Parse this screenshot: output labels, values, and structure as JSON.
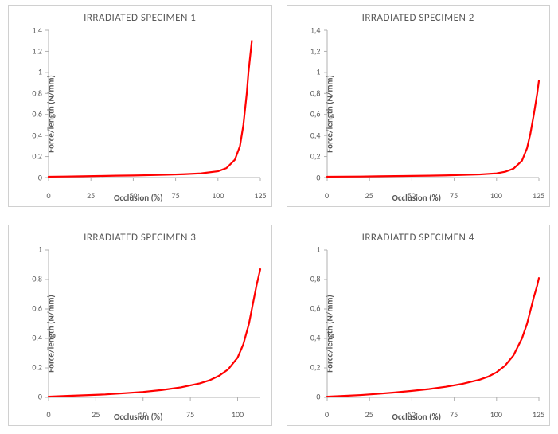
{
  "layout": {
    "rows": 2,
    "cols": 2
  },
  "common": {
    "xlabel": "Occlusion (%)",
    "ylabel": "Force/length (N/mm)",
    "title_fontsize": 13,
    "label_fontsize": 11,
    "tick_fontsize": 10,
    "title_color": "#595959",
    "label_color": "#595959",
    "tick_color": "#595959",
    "line_color": "#ff0000",
    "line_width": 2.2,
    "axis_color": "#b0b0b0",
    "tick_mark_color": "#b0b0b0",
    "panel_border_color": "#d0d0d0",
    "background_color": "#ffffff",
    "font_family": "Calibri"
  },
  "charts": [
    {
      "title": "IRRADIATED SPECIMEN 1",
      "type": "line",
      "xlim": [
        0,
        125
      ],
      "xtick_step": 25,
      "ylim": [
        0,
        1.4
      ],
      "ytick_step": 0.2,
      "y_decimal_sep": "mixed",
      "series": {
        "x": [
          0,
          10,
          20,
          30,
          40,
          50,
          60,
          70,
          80,
          90,
          100,
          105,
          110,
          113,
          115,
          117,
          118,
          119,
          120
        ],
        "y": [
          0.008,
          0.01,
          0.012,
          0.015,
          0.018,
          0.02,
          0.023,
          0.027,
          0.032,
          0.04,
          0.06,
          0.09,
          0.17,
          0.3,
          0.5,
          0.8,
          1.0,
          1.15,
          1.3
        ]
      }
    },
    {
      "title": "IRRADIATED SPECIMEN 2",
      "type": "line",
      "xlim": [
        0,
        125
      ],
      "xtick_step": 25,
      "ylim": [
        0,
        1.4
      ],
      "ytick_step": 0.2,
      "y_decimal_sep": "mixed",
      "series": {
        "x": [
          0,
          10,
          20,
          30,
          40,
          50,
          60,
          70,
          80,
          90,
          100,
          105,
          110,
          115,
          118,
          120,
          122,
          124,
          125
        ],
        "y": [
          0.008,
          0.009,
          0.01,
          0.012,
          0.014,
          0.016,
          0.018,
          0.021,
          0.025,
          0.03,
          0.04,
          0.055,
          0.085,
          0.16,
          0.28,
          0.42,
          0.6,
          0.8,
          0.92
        ]
      }
    },
    {
      "title": "IRRADIATED SPECIMEN 3",
      "type": "line",
      "xlim": [
        0,
        112
      ],
      "xtick_step": 25,
      "ylim": [
        0,
        1.0
      ],
      "ytick_step": 0.2,
      "y_decimal_sep": "mixed",
      "series": {
        "x": [
          0,
          10,
          20,
          30,
          40,
          50,
          60,
          70,
          80,
          85,
          90,
          95,
          100,
          103,
          106,
          108,
          110,
          112
        ],
        "y": [
          0.005,
          0.01,
          0.015,
          0.02,
          0.028,
          0.037,
          0.05,
          0.068,
          0.095,
          0.115,
          0.145,
          0.19,
          0.27,
          0.36,
          0.5,
          0.63,
          0.76,
          0.87
        ]
      }
    },
    {
      "title": "IRRADIATED SPECIMEN 4",
      "type": "line",
      "xlim": [
        0,
        125
      ],
      "xtick_step": 25,
      "ylim": [
        0,
        1.0
      ],
      "ytick_step": 0.2,
      "y_decimal_sep": "mixed",
      "series": {
        "x": [
          0,
          10,
          20,
          30,
          40,
          50,
          60,
          70,
          80,
          90,
          95,
          100,
          105,
          110,
          115,
          118,
          120,
          122,
          124,
          125
        ],
        "y": [
          0.005,
          0.01,
          0.016,
          0.024,
          0.033,
          0.044,
          0.056,
          0.072,
          0.092,
          0.12,
          0.14,
          0.17,
          0.215,
          0.285,
          0.4,
          0.5,
          0.59,
          0.68,
          0.76,
          0.81
        ]
      }
    }
  ]
}
